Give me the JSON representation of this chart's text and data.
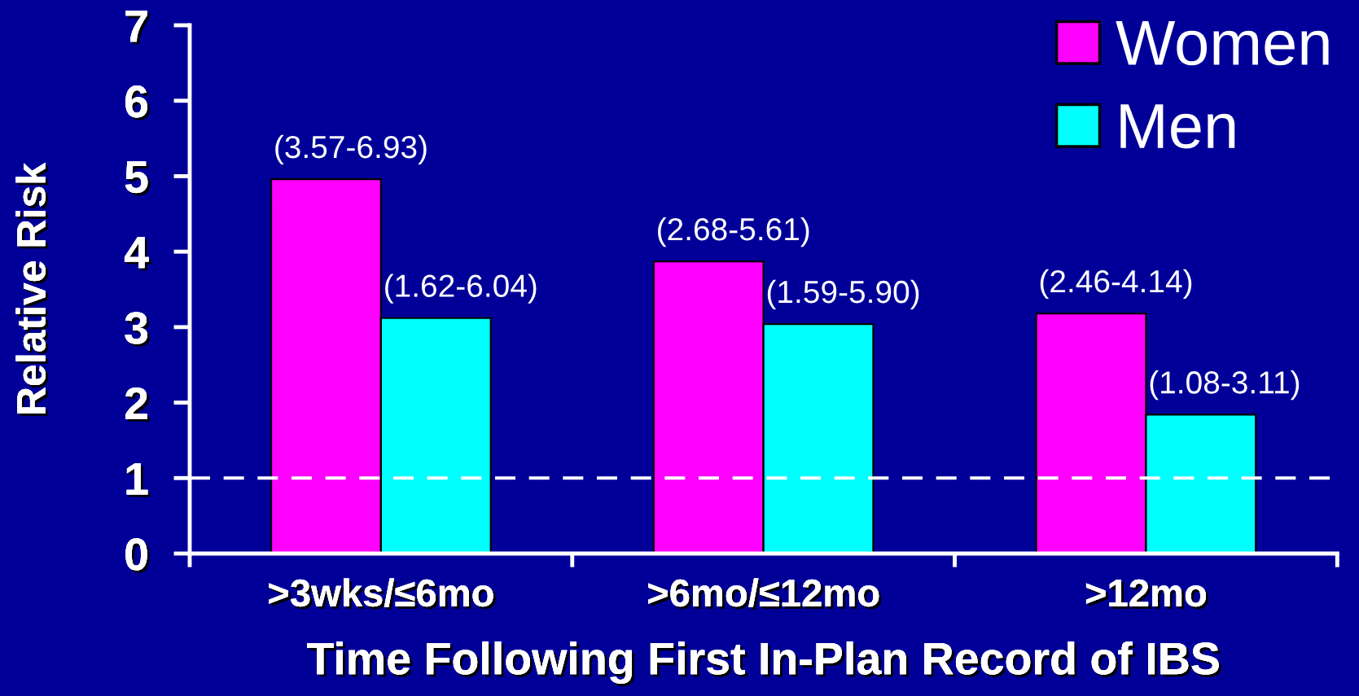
{
  "chart_data": {
    "type": "bar",
    "xlabel": "Time Following First In-Plan Record of IBS",
    "ylabel": "Relative Risk",
    "categories": [
      ">3wks/≤6mo",
      ">6mo/≤12mo",
      ">12mo"
    ],
    "series": [
      {
        "name": "Women",
        "color": "#ff00ff",
        "values": [
          4.96,
          3.87,
          3.18
        ],
        "value_labels": [
          "(3.57-6.93)",
          "(2.68-5.61)",
          "(2.46-4.14)"
        ]
      },
      {
        "name": "Men",
        "color": "#00ffff",
        "values": [
          3.12,
          3.04,
          1.84
        ],
        "value_labels": [
          "(1.62-6.04)",
          "(1.59-5.90)",
          "(1.08-3.11)"
        ]
      }
    ],
    "ylim": [
      0,
      7
    ],
    "yticks": [
      0,
      1,
      2,
      3,
      4,
      5,
      6,
      7
    ],
    "ref_lines": [
      {
        "axis": "y",
        "value": 1,
        "color": "#ffffff",
        "line_style": "dashed"
      }
    ],
    "legend": "top right",
    "grid": false
  }
}
